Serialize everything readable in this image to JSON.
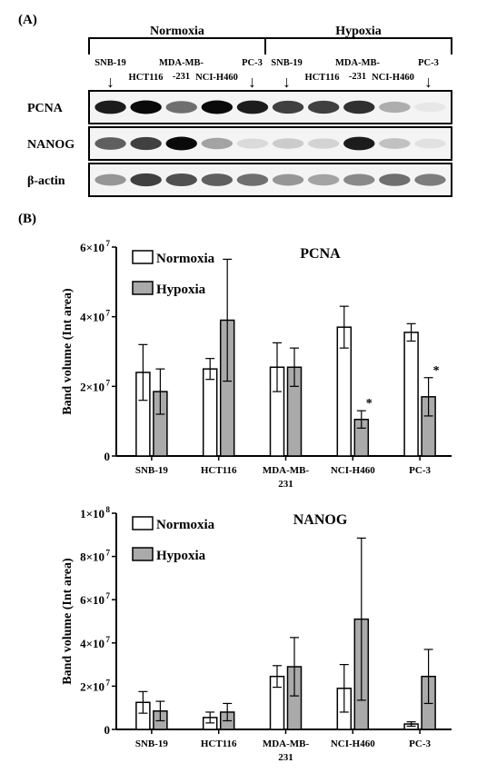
{
  "panel_a": {
    "label": "(A)",
    "groups": [
      "Normoxia",
      "Hypoxia"
    ],
    "cell_lines": [
      {
        "name": "SNB-19",
        "row": "upper",
        "arrow": true
      },
      {
        "name": "HCT116",
        "row": "lower",
        "arrow": false
      },
      {
        "name": "MDA-MB-",
        "name2": "-231",
        "row": "upper",
        "arrow": false
      },
      {
        "name": "NCI-H460",
        "row": "lower",
        "arrow": false
      },
      {
        "name": "PC-3",
        "row": "upper",
        "arrow": true
      }
    ],
    "arrow_glyph": "↓",
    "blots": [
      {
        "name": "PCNA",
        "bands": [
          0.95,
          1.0,
          0.7,
          1.0,
          0.95,
          0.85,
          0.85,
          0.9,
          0.45,
          0.1
        ]
      },
      {
        "name": "NANOG",
        "bands": [
          0.75,
          0.85,
          1.0,
          0.5,
          0.2,
          0.3,
          0.25,
          0.95,
          0.35,
          0.15
        ]
      },
      {
        "name": "β-actin",
        "bands": [
          0.55,
          0.85,
          0.8,
          0.75,
          0.7,
          0.55,
          0.5,
          0.6,
          0.7,
          0.65
        ]
      }
    ]
  },
  "panel_b": {
    "label": "(B)",
    "colors": {
      "normoxia": "#ffffff",
      "hypoxia": "#aaaaaa",
      "stroke": "#000000"
    }
  },
  "chart_data": [
    {
      "type": "bar",
      "title": "PCNA",
      "ylabel": "Band volume (Int area)",
      "categories": [
        "SNB-19",
        "HCT116",
        "MDA-MB-\n231",
        "NCI-H460",
        "PC-3"
      ],
      "category_labels": [
        [
          "SNB-19"
        ],
        [
          "HCT116"
        ],
        [
          "MDA-MB-",
          "231"
        ],
        [
          "NCI-H460"
        ],
        [
          "PC-3"
        ]
      ],
      "ylim": [
        0,
        60000000
      ],
      "yticks": [
        {
          "value": 0,
          "label": "0"
        },
        {
          "value": 20000000,
          "label": "2×10",
          "exp": "7"
        },
        {
          "value": 40000000,
          "label": "4×10",
          "exp": "7"
        },
        {
          "value": 60000000,
          "label": "6×10",
          "exp": "7"
        }
      ],
      "legend": "top-left",
      "series": [
        {
          "name": "Normoxia",
          "values": [
            24000000,
            25000000,
            25500000,
            37000000,
            35500000
          ],
          "errors": [
            8000000,
            3000000,
            7000000,
            6000000,
            2500000
          ]
        },
        {
          "name": "Hypoxia",
          "values": [
            18500000,
            39000000,
            25500000,
            10500000,
            17000000
          ],
          "errors": [
            6500000,
            17500000,
            5500000,
            2500000,
            5500000
          ]
        }
      ],
      "annotations": [
        {
          "category": 3,
          "series": 1,
          "text": "*"
        },
        {
          "category": 4,
          "series": 1,
          "text": "*"
        }
      ]
    },
    {
      "type": "bar",
      "title": "NANOG",
      "ylabel": "Band volume (Int area)",
      "categories": [
        "SNB-19",
        "HCT116",
        "MDA-MB-\n231",
        "NCI-H460",
        "PC-3"
      ],
      "category_labels": [
        [
          "SNB-19"
        ],
        [
          "HCT116"
        ],
        [
          "MDA-MB-",
          "231"
        ],
        [
          "NCI-H460"
        ],
        [
          "PC-3"
        ]
      ],
      "ylim": [
        0,
        100000000
      ],
      "yticks": [
        {
          "value": 0,
          "label": "0"
        },
        {
          "value": 20000000,
          "label": "2×10",
          "exp": "7"
        },
        {
          "value": 40000000,
          "label": "4×10",
          "exp": "7"
        },
        {
          "value": 60000000,
          "label": "6×10",
          "exp": "7"
        },
        {
          "value": 80000000,
          "label": "8×10",
          "exp": "7"
        },
        {
          "value": 100000000,
          "label": "1×10",
          "exp": "8"
        }
      ],
      "legend": "top-left",
      "series": [
        {
          "name": "Normoxia",
          "values": [
            12500000,
            5500000,
            24500000,
            19000000,
            2500000
          ],
          "errors": [
            5000000,
            2500000,
            5000000,
            11000000,
            1000000
          ]
        },
        {
          "name": "Hypoxia",
          "values": [
            8500000,
            8000000,
            29000000,
            51000000,
            24500000
          ],
          "errors": [
            4500000,
            4000000,
            13500000,
            37500000,
            12500000
          ]
        }
      ],
      "annotations": []
    }
  ]
}
